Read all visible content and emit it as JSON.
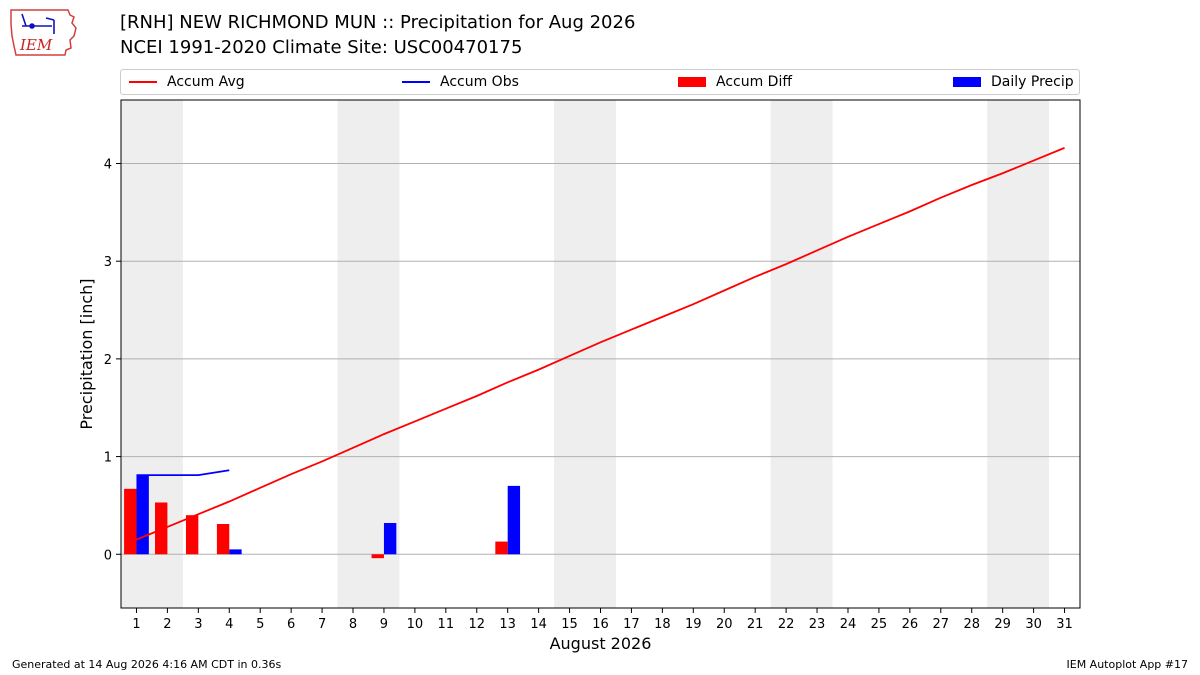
{
  "logo": {
    "text": "IEM"
  },
  "header": {
    "title": "[RNH] NEW RICHMOND MUN :: Precipitation for Aug 2026",
    "subtitle": "NCEI 1991-2020 Climate Site: USC00470175"
  },
  "legend": {
    "items": [
      {
        "label": "Accum Avg",
        "kind": "line",
        "color": "#ff0000"
      },
      {
        "label": "Accum Obs",
        "kind": "line",
        "color": "#0000ff"
      },
      {
        "label": "Accum Diff",
        "kind": "box",
        "color": "#ff0000"
      },
      {
        "label": "Daily Precip",
        "kind": "box",
        "color": "#0000ff"
      }
    ]
  },
  "chart_data": {
    "type": "bar+line",
    "xlabel": "August 2026",
    "ylabel": "Precipitation [inch]",
    "xlim": [
      0.5,
      31.5
    ],
    "ylim": [
      -0.55,
      4.65
    ],
    "yticks": [
      0,
      1,
      2,
      3,
      4
    ],
    "x": [
      1,
      2,
      3,
      4,
      5,
      6,
      7,
      8,
      9,
      10,
      11,
      12,
      13,
      14,
      15,
      16,
      17,
      18,
      19,
      20,
      21,
      22,
      23,
      24,
      25,
      26,
      27,
      28,
      29,
      30,
      31
    ],
    "weekend_shading": [
      [
        0.5,
        2.5
      ],
      [
        7.5,
        9.5
      ],
      [
        14.5,
        16.5
      ],
      [
        21.5,
        23.5
      ],
      [
        28.5,
        30.5
      ]
    ],
    "grid": "horizontal",
    "series": [
      {
        "name": "Accum Avg",
        "type": "line",
        "color": "#ff0000",
        "x": [
          1,
          2,
          3,
          4,
          5,
          6,
          7,
          8,
          9,
          10,
          11,
          12,
          13,
          14,
          15,
          16,
          17,
          18,
          19,
          20,
          21,
          22,
          23,
          24,
          25,
          26,
          27,
          28,
          29,
          30,
          31
        ],
        "values": [
          0.15,
          0.28,
          0.41,
          0.54,
          0.68,
          0.82,
          0.95,
          1.09,
          1.23,
          1.36,
          1.49,
          1.62,
          1.76,
          1.89,
          2.03,
          2.17,
          2.3,
          2.43,
          2.56,
          2.7,
          2.84,
          2.97,
          3.11,
          3.25,
          3.38,
          3.51,
          3.65,
          3.78,
          3.9,
          4.03,
          4.16
        ]
      },
      {
        "name": "Accum Obs",
        "type": "line",
        "color": "#0000ff",
        "x": [
          1,
          2,
          3,
          4
        ],
        "values": [
          0.81,
          0.81,
          0.81,
          0.86
        ]
      },
      {
        "name": "Accum Diff",
        "type": "bar",
        "color": "#ff0000",
        "x": [
          1,
          2,
          3,
          4,
          9,
          13
        ],
        "values": [
          0.67,
          0.53,
          0.4,
          0.31,
          -0.04,
          0.13
        ]
      },
      {
        "name": "Daily Precip",
        "type": "bar",
        "color": "#0000ff",
        "x": [
          1,
          4,
          9,
          13
        ],
        "values": [
          0.81,
          0.05,
          0.32,
          0.7
        ]
      }
    ]
  },
  "footer": {
    "left": "Generated at 14 Aug 2026 4:16 AM CDT in 0.36s",
    "right": "IEM Autoplot App #17"
  }
}
